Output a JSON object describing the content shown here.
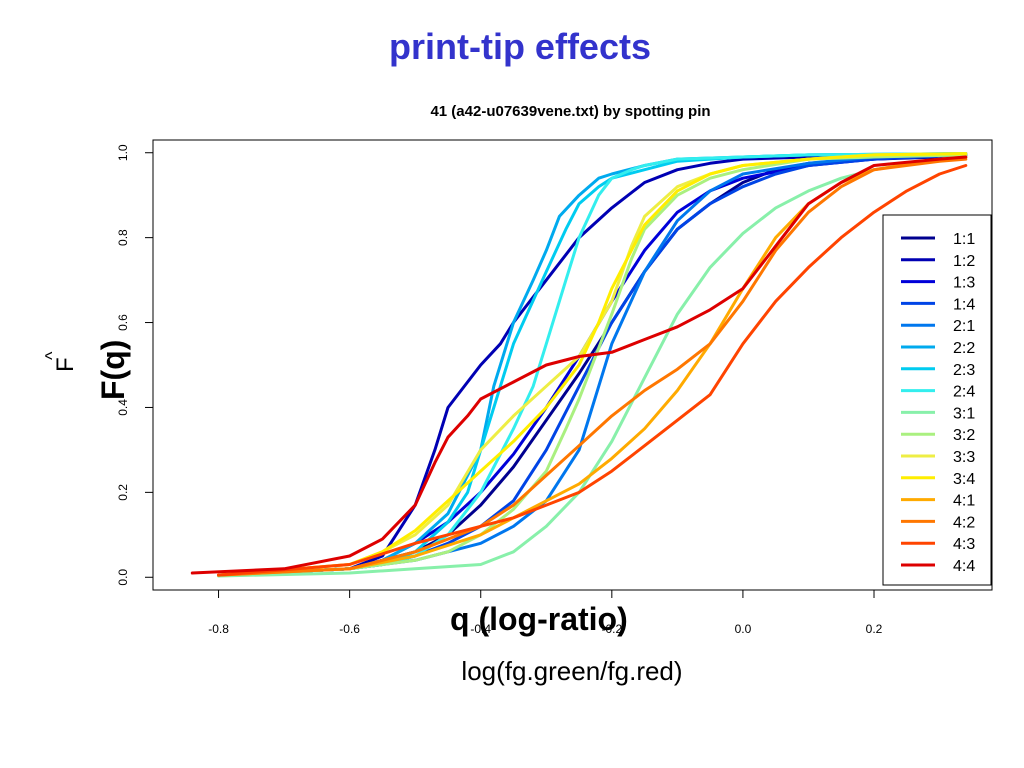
{
  "slide": {
    "title": "print-tip effects",
    "overlay_xtitle": "q (log-ratio)",
    "overlay_ytitle": "F(q)",
    "overlay_ylabel_text": "F",
    "overlay_ylabel_hat": "^"
  },
  "chart_data": {
    "type": "line",
    "title": "41 (a42-u07639vene.txt) by spotting pin",
    "xlabel": "log(fg.green/fg.red)",
    "ylabel": "",
    "xlim": [
      -0.9,
      0.38
    ],
    "ylim": [
      -0.03,
      1.03
    ],
    "xticks": [
      -0.8,
      -0.6,
      -0.4,
      -0.2,
      0.0,
      0.2
    ],
    "xtick_labels": [
      "-0.8",
      "-0.6",
      "-0.4",
      "-0.2",
      "0.0",
      "0.2"
    ],
    "yticks": [
      0.0,
      0.2,
      0.4,
      0.6,
      0.8,
      1.0
    ],
    "ytick_labels": [
      "0.0",
      "0.2",
      "0.4",
      "0.6",
      "0.8",
      "1.0"
    ],
    "legend_position": "right",
    "series": [
      {
        "name": "1:1",
        "color": "#00008f",
        "x": [
          -0.8,
          -0.6,
          -0.55,
          -0.5,
          -0.45,
          -0.4,
          -0.35,
          -0.3,
          -0.25,
          -0.2,
          -0.15,
          -0.1,
          -0.05,
          0.0,
          0.05,
          0.1,
          0.2,
          0.3,
          0.34
        ],
        "y": [
          0.005,
          0.02,
          0.04,
          0.06,
          0.1,
          0.17,
          0.26,
          0.37,
          0.48,
          0.6,
          0.72,
          0.82,
          0.88,
          0.93,
          0.96,
          0.975,
          0.985,
          0.99,
          0.995
        ]
      },
      {
        "name": "1:2",
        "color": "#0000b3",
        "x": [
          -0.8,
          -0.6,
          -0.55,
          -0.5,
          -0.47,
          -0.45,
          -0.42,
          -0.4,
          -0.37,
          -0.35,
          -0.3,
          -0.25,
          -0.2,
          -0.15,
          -0.1,
          -0.05,
          0.0,
          0.1,
          0.2,
          0.34
        ],
        "y": [
          0.005,
          0.02,
          0.05,
          0.17,
          0.3,
          0.4,
          0.46,
          0.5,
          0.55,
          0.6,
          0.7,
          0.8,
          0.87,
          0.93,
          0.96,
          0.975,
          0.985,
          0.99,
          0.995,
          0.998
        ]
      },
      {
        "name": "1:3",
        "color": "#0000d9",
        "x": [
          -0.8,
          -0.6,
          -0.55,
          -0.5,
          -0.45,
          -0.4,
          -0.35,
          -0.3,
          -0.25,
          -0.2,
          -0.15,
          -0.1,
          -0.05,
          0.0,
          0.1,
          0.2,
          0.34
        ],
        "y": [
          0.005,
          0.02,
          0.04,
          0.08,
          0.13,
          0.2,
          0.29,
          0.4,
          0.52,
          0.65,
          0.77,
          0.86,
          0.91,
          0.94,
          0.97,
          0.985,
          0.995
        ]
      },
      {
        "name": "1:4",
        "color": "#0044e6",
        "x": [
          -0.8,
          -0.6,
          -0.55,
          -0.5,
          -0.45,
          -0.4,
          -0.35,
          -0.3,
          -0.25,
          -0.2,
          -0.15,
          -0.1,
          -0.05,
          0.0,
          0.05,
          0.1,
          0.2,
          0.34
        ],
        "y": [
          0.005,
          0.02,
          0.03,
          0.05,
          0.08,
          0.12,
          0.18,
          0.3,
          0.45,
          0.6,
          0.72,
          0.82,
          0.88,
          0.92,
          0.95,
          0.97,
          0.985,
          0.995
        ]
      },
      {
        "name": "2:1",
        "color": "#0077ee",
        "x": [
          -0.8,
          -0.6,
          -0.55,
          -0.5,
          -0.45,
          -0.4,
          -0.35,
          -0.3,
          -0.25,
          -0.23,
          -0.2,
          -0.15,
          -0.1,
          -0.05,
          0.0,
          0.1,
          0.2,
          0.34
        ],
        "y": [
          0.005,
          0.02,
          0.03,
          0.04,
          0.06,
          0.08,
          0.12,
          0.18,
          0.3,
          0.4,
          0.55,
          0.72,
          0.84,
          0.91,
          0.95,
          0.975,
          0.99,
          0.998
        ]
      },
      {
        "name": "2:2",
        "color": "#00aaee",
        "x": [
          -0.8,
          -0.6,
          -0.55,
          -0.5,
          -0.45,
          -0.4,
          -0.38,
          -0.35,
          -0.32,
          -0.3,
          -0.28,
          -0.25,
          -0.22,
          -0.2,
          -0.15,
          -0.1,
          0.0,
          0.1,
          0.34
        ],
        "y": [
          0.005,
          0.02,
          0.04,
          0.08,
          0.15,
          0.3,
          0.45,
          0.6,
          0.7,
          0.77,
          0.85,
          0.9,
          0.94,
          0.95,
          0.97,
          0.985,
          0.99,
          0.995,
          0.998
        ]
      },
      {
        "name": "2:3",
        "color": "#00ccf0",
        "x": [
          -0.8,
          -0.6,
          -0.55,
          -0.5,
          -0.45,
          -0.42,
          -0.4,
          -0.37,
          -0.35,
          -0.3,
          -0.27,
          -0.25,
          -0.22,
          -0.2,
          -0.15,
          -0.1,
          0.0,
          0.1,
          0.34
        ],
        "y": [
          0.005,
          0.02,
          0.03,
          0.06,
          0.13,
          0.2,
          0.3,
          0.45,
          0.55,
          0.72,
          0.82,
          0.88,
          0.92,
          0.94,
          0.96,
          0.98,
          0.99,
          0.995,
          0.998
        ]
      },
      {
        "name": "2:4",
        "color": "#33eeee",
        "x": [
          -0.8,
          -0.6,
          -0.55,
          -0.5,
          -0.45,
          -0.4,
          -0.35,
          -0.32,
          -0.3,
          -0.27,
          -0.25,
          -0.22,
          -0.2,
          -0.17,
          -0.15,
          -0.1,
          0.0,
          0.1,
          0.34
        ],
        "y": [
          0.005,
          0.02,
          0.03,
          0.05,
          0.1,
          0.2,
          0.35,
          0.45,
          0.55,
          0.7,
          0.8,
          0.9,
          0.94,
          0.96,
          0.97,
          0.985,
          0.99,
          0.995,
          0.998
        ]
      },
      {
        "name": "3:1",
        "color": "#88f0aa",
        "x": [
          -0.8,
          -0.6,
          -0.5,
          -0.4,
          -0.35,
          -0.3,
          -0.25,
          -0.2,
          -0.15,
          -0.1,
          -0.05,
          0.0,
          0.05,
          0.1,
          0.15,
          0.2,
          0.3,
          0.34
        ],
        "y": [
          0.003,
          0.01,
          0.02,
          0.03,
          0.06,
          0.12,
          0.2,
          0.32,
          0.47,
          0.62,
          0.73,
          0.81,
          0.87,
          0.91,
          0.94,
          0.96,
          0.985,
          0.99
        ]
      },
      {
        "name": "3:2",
        "color": "#aaf080",
        "x": [
          -0.8,
          -0.6,
          -0.5,
          -0.45,
          -0.4,
          -0.35,
          -0.3,
          -0.27,
          -0.25,
          -0.2,
          -0.17,
          -0.15,
          -0.1,
          -0.05,
          0.0,
          0.1,
          0.2,
          0.34
        ],
        "y": [
          0.005,
          0.02,
          0.04,
          0.06,
          0.1,
          0.16,
          0.25,
          0.35,
          0.42,
          0.62,
          0.75,
          0.82,
          0.9,
          0.94,
          0.96,
          0.985,
          0.99,
          0.995
        ]
      },
      {
        "name": "3:3",
        "color": "#eeee44",
        "x": [
          -0.8,
          -0.6,
          -0.55,
          -0.5,
          -0.45,
          -0.4,
          -0.35,
          -0.3,
          -0.25,
          -0.2,
          -0.17,
          -0.15,
          -0.1,
          -0.05,
          0.0,
          0.1,
          0.2,
          0.34
        ],
        "y": [
          0.005,
          0.03,
          0.06,
          0.1,
          0.17,
          0.3,
          0.38,
          0.45,
          0.52,
          0.65,
          0.78,
          0.85,
          0.92,
          0.95,
          0.97,
          0.985,
          0.995,
          0.998
        ]
      },
      {
        "name": "3:4",
        "color": "#ffee00",
        "x": [
          -0.8,
          -0.6,
          -0.55,
          -0.5,
          -0.45,
          -0.4,
          -0.35,
          -0.3,
          -0.25,
          -0.22,
          -0.2,
          -0.15,
          -0.1,
          -0.05,
          0.0,
          0.1,
          0.2,
          0.34
        ],
        "y": [
          0.005,
          0.03,
          0.06,
          0.11,
          0.18,
          0.25,
          0.32,
          0.4,
          0.5,
          0.6,
          0.68,
          0.83,
          0.91,
          0.95,
          0.97,
          0.985,
          0.995,
          0.998
        ]
      },
      {
        "name": "4:1",
        "color": "#ffaa00",
        "x": [
          -0.8,
          -0.6,
          -0.5,
          -0.4,
          -0.35,
          -0.3,
          -0.25,
          -0.2,
          -0.15,
          -0.1,
          -0.05,
          0.0,
          0.05,
          0.1,
          0.15,
          0.2,
          0.3,
          0.34
        ],
        "y": [
          0.005,
          0.02,
          0.05,
          0.1,
          0.14,
          0.18,
          0.22,
          0.28,
          0.35,
          0.44,
          0.55,
          0.68,
          0.8,
          0.88,
          0.93,
          0.96,
          0.985,
          0.99
        ]
      },
      {
        "name": "4:2",
        "color": "#ff7700",
        "x": [
          -0.8,
          -0.6,
          -0.5,
          -0.45,
          -0.4,
          -0.35,
          -0.3,
          -0.25,
          -0.2,
          -0.15,
          -0.1,
          -0.05,
          0.0,
          0.05,
          0.1,
          0.15,
          0.2,
          0.3,
          0.34
        ],
        "y": [
          0.005,
          0.02,
          0.06,
          0.09,
          0.12,
          0.17,
          0.24,
          0.31,
          0.38,
          0.44,
          0.49,
          0.55,
          0.65,
          0.77,
          0.86,
          0.92,
          0.96,
          0.98,
          0.985
        ]
      },
      {
        "name": "4:3",
        "color": "#ff4400",
        "x": [
          -0.8,
          -0.6,
          -0.5,
          -0.45,
          -0.4,
          -0.35,
          -0.3,
          -0.25,
          -0.2,
          -0.15,
          -0.1,
          -0.05,
          0.0,
          0.05,
          0.1,
          0.15,
          0.2,
          0.25,
          0.3,
          0.34
        ],
        "y": [
          0.005,
          0.03,
          0.08,
          0.1,
          0.12,
          0.14,
          0.17,
          0.2,
          0.25,
          0.31,
          0.37,
          0.43,
          0.55,
          0.65,
          0.73,
          0.8,
          0.86,
          0.91,
          0.95,
          0.97
        ]
      },
      {
        "name": "4:4",
        "color": "#dd0000",
        "x": [
          -0.84,
          -0.7,
          -0.6,
          -0.55,
          -0.5,
          -0.47,
          -0.45,
          -0.42,
          -0.4,
          -0.35,
          -0.3,
          -0.25,
          -0.2,
          -0.15,
          -0.1,
          -0.05,
          0.0,
          0.05,
          0.1,
          0.15,
          0.2,
          0.3,
          0.34
        ],
        "y": [
          0.01,
          0.02,
          0.05,
          0.09,
          0.17,
          0.27,
          0.33,
          0.38,
          0.42,
          0.46,
          0.5,
          0.52,
          0.53,
          0.56,
          0.59,
          0.63,
          0.68,
          0.78,
          0.88,
          0.93,
          0.97,
          0.985,
          0.99
        ]
      }
    ]
  }
}
